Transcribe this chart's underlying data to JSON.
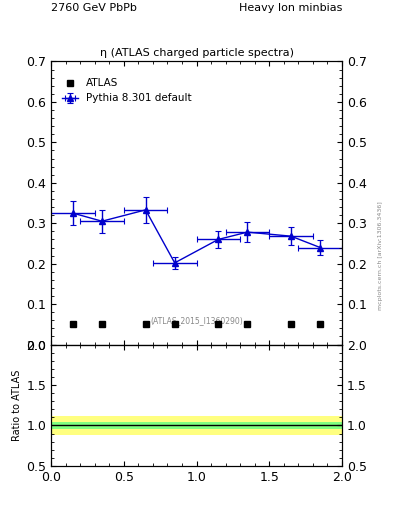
{
  "title_left": "2760 GeV PbPb",
  "title_right": "Heavy Ion minbias",
  "main_title": "η (ATLAS charged particle spectra)",
  "watermark": "mcplots.cern.ch [arXiv:1306.3436]",
  "atlas_label": "(ATLAS_2015_I1360290)",
  "ylabel_ratio": "Ratio to ATLAS",
  "xlim": [
    0,
    2
  ],
  "ylim_main": [
    0,
    0.7
  ],
  "ylim_ratio": [
    0.5,
    2.0
  ],
  "legend_entries": [
    "ATLAS",
    "Pythia 8.301 default"
  ],
  "atlas_x": [
    0.15,
    0.35,
    0.65,
    0.85,
    1.15,
    1.35,
    1.65,
    1.85
  ],
  "atlas_y": [
    0.05,
    0.05,
    0.05,
    0.05,
    0.05,
    0.05,
    0.05,
    0.05
  ],
  "pythia_x": [
    0.15,
    0.35,
    0.65,
    0.85,
    1.15,
    1.35,
    1.65,
    1.85
  ],
  "pythia_y": [
    0.325,
    0.305,
    0.333,
    0.202,
    0.26,
    0.278,
    0.268,
    0.24
  ],
  "pythia_yerr": [
    0.03,
    0.028,
    0.032,
    0.015,
    0.022,
    0.025,
    0.022,
    0.018
  ],
  "pythia_xerr": [
    0.15,
    0.15,
    0.15,
    0.15,
    0.15,
    0.15,
    0.15,
    0.15
  ],
  "ratio_band_green_lo": 0.96,
  "ratio_band_green_hi": 1.04,
  "ratio_band_yellow_lo": 0.88,
  "ratio_band_yellow_hi": 1.12,
  "ratio_line": 1.0,
  "pythia_color": "#0000cc",
  "atlas_marker": "s",
  "atlas_color": "#000000",
  "green_band_color": "#80ff80",
  "yellow_band_color": "#ffff80",
  "yticks_main": [
    0.0,
    0.1,
    0.2,
    0.3,
    0.4,
    0.5,
    0.6,
    0.7
  ],
  "yticks_ratio": [
    0.5,
    1.0,
    1.5,
    2.0
  ],
  "xticks": [
    0.0,
    0.5,
    1.0,
    1.5,
    2.0
  ]
}
